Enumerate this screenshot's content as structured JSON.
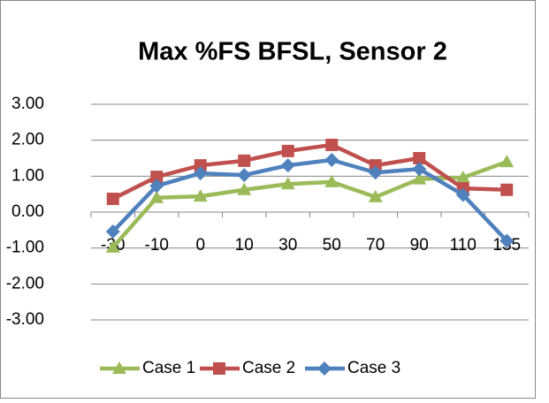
{
  "chart_data": {
    "type": "line",
    "title": "Max %FS BFSL, Sensor 2",
    "categories": [
      "-30",
      "-10",
      "0",
      "10",
      "30",
      "50",
      "70",
      "90",
      "110",
      "135"
    ],
    "series": [
      {
        "name": "Case 1",
        "color": "#9bbb59",
        "marker": "triangle",
        "values": [
          -0.98,
          0.4,
          0.44,
          0.62,
          0.78,
          0.84,
          0.42,
          0.92,
          0.96,
          1.4
        ]
      },
      {
        "name": "Case 2",
        "color": "#c0504d",
        "marker": "square",
        "values": [
          0.37,
          0.98,
          1.3,
          1.43,
          1.7,
          1.87,
          1.3,
          1.5,
          0.66,
          0.62
        ]
      },
      {
        "name": "Case 3",
        "color": "#4f81bd",
        "marker": "diamond",
        "values": [
          -0.54,
          0.73,
          1.08,
          1.03,
          1.3,
          1.45,
          1.1,
          1.2,
          0.48,
          -0.8
        ]
      }
    ],
    "ylim": [
      -3,
      3
    ],
    "yticks": [
      {
        "value": 3,
        "label": "3.00"
      },
      {
        "value": 2,
        "label": "2.00"
      },
      {
        "value": 1,
        "label": "1.00"
      },
      {
        "value": 0,
        "label": "0.00"
      },
      {
        "value": -1,
        "label": "-1.00"
      },
      {
        "value": -2,
        "label": "-2.00"
      },
      {
        "value": -3,
        "label": "-3.00"
      }
    ],
    "grid": true,
    "legend": "bottom"
  }
}
